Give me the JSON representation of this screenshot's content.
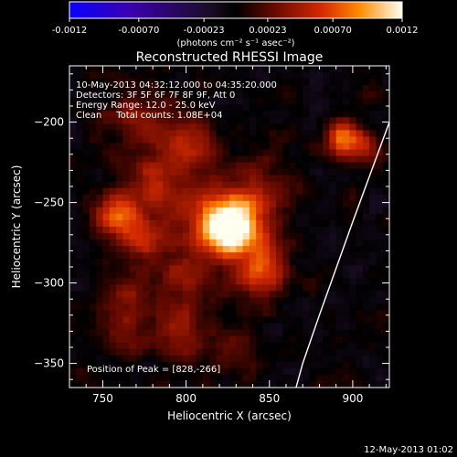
{
  "chart_data": {
    "type": "heatmap",
    "title": "Reconstructed RHESSI Image",
    "xlabel": "Heliocentric X (arcsec)",
    "ylabel": "Heliocentric Y (arcsec)",
    "xlim": [
      730,
      922
    ],
    "ylim": [
      -365,
      -165
    ],
    "x_ticks": [
      750,
      800,
      850,
      900
    ],
    "y_ticks": [
      -200,
      -250,
      -300,
      -350
    ],
    "colorbar": {
      "range": [
        -0.0012,
        0.0012
      ],
      "tick_labels": [
        "-0.0012",
        "-0.00070",
        "-0.00023",
        "0.00023",
        "0.00070",
        "0.0012"
      ],
      "tick_values": [
        -0.0012,
        -0.0007,
        -0.00023,
        0.00023,
        0.0007,
        0.0012
      ],
      "units_label": "(photons cm⁻² s⁻¹ asec⁻²)"
    },
    "annotations": {
      "time_range": "10-May-2013 04:32:12.000 to 04:35:20.000",
      "detectors": "Detectors: 3F 5F 6F 7F 8F 9F, Att 0",
      "energy_range": "Energy Range: 12.0 - 25.0 keV",
      "clean_counts": "Clean     Total counts: 1.08E+04",
      "peak_position": "Position of Peak = [828,-266]"
    },
    "peak": {
      "x": 828,
      "y": -266
    },
    "sources": [
      {
        "x": 828,
        "y": -266,
        "amplitude": 0.00125,
        "sigma": 12
      },
      {
        "x": 812,
        "y": -262,
        "amplitude": 0.00055,
        "sigma": 16
      },
      {
        "x": 757,
        "y": -258,
        "amplitude": 0.00072,
        "sigma": 9
      },
      {
        "x": 773,
        "y": -272,
        "amplitude": 0.00052,
        "sigma": 10
      },
      {
        "x": 778,
        "y": -240,
        "amplitude": 0.00048,
        "sigma": 12
      },
      {
        "x": 800,
        "y": -215,
        "amplitude": 0.0005,
        "sigma": 14
      },
      {
        "x": 770,
        "y": -200,
        "amplitude": 0.0004,
        "sigma": 12
      },
      {
        "x": 845,
        "y": -245,
        "amplitude": 0.00045,
        "sigma": 12
      },
      {
        "x": 848,
        "y": -285,
        "amplitude": 0.00042,
        "sigma": 10
      },
      {
        "x": 845,
        "y": -300,
        "amplitude": 0.00038,
        "sigma": 12
      },
      {
        "x": 800,
        "y": -300,
        "amplitude": 0.0004,
        "sigma": 14
      },
      {
        "x": 762,
        "y": -305,
        "amplitude": 0.00042,
        "sigma": 10
      },
      {
        "x": 795,
        "y": -335,
        "amplitude": 0.0004,
        "sigma": 12
      },
      {
        "x": 762,
        "y": -330,
        "amplitude": 0.00035,
        "sigma": 10
      },
      {
        "x": 893,
        "y": -210,
        "amplitude": 0.00075,
        "sigma": 7
      },
      {
        "x": 906,
        "y": -215,
        "amplitude": 0.0004,
        "sigma": 8
      },
      {
        "x": 830,
        "y": -340,
        "amplitude": 0.00025,
        "sigma": 10
      }
    ],
    "limb": [
      [
        922,
        -200
      ],
      [
        900,
        -262
      ],
      [
        880,
        -320
      ],
      [
        870,
        -350
      ],
      [
        866,
        -365
      ]
    ]
  },
  "footer": {
    "date_stamp": "12-May-2013 01:02"
  }
}
